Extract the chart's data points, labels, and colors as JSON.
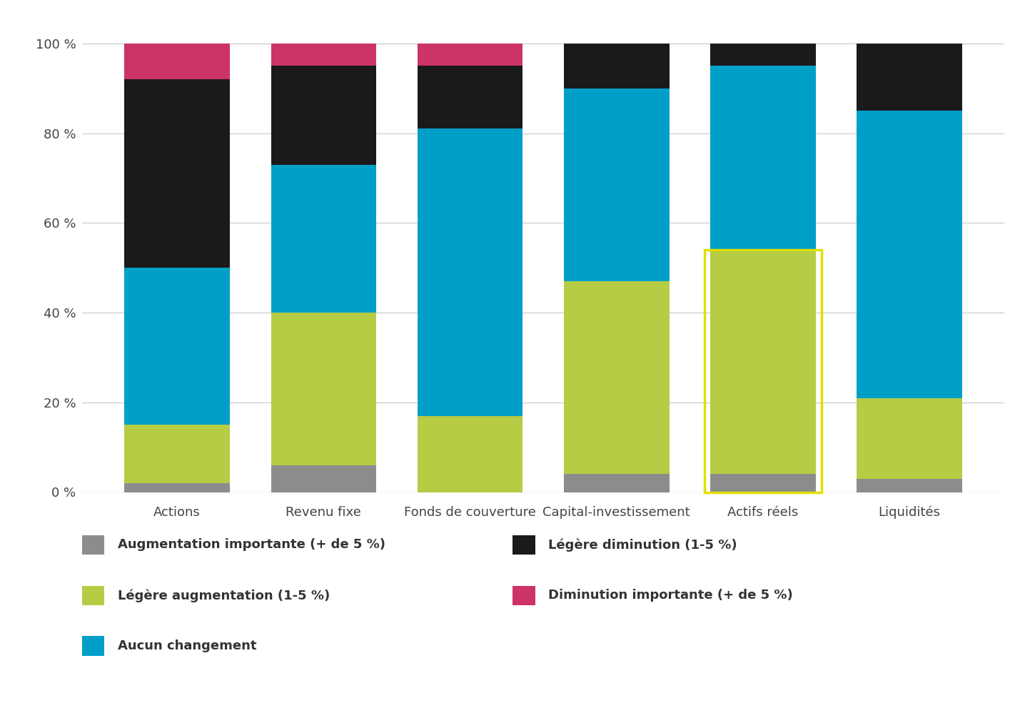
{
  "categories": [
    "Actions",
    "Revenu fixe",
    "Fonds de couverture",
    "Capital-investissement",
    "Actifs réels",
    "Liquidités"
  ],
  "segment_order": [
    "aug_imp",
    "leg_aug",
    "aucun",
    "leg_dim",
    "dim_imp"
  ],
  "segments": {
    "aug_imp": [
      2,
      6,
      0,
      4,
      4,
      3
    ],
    "leg_aug": [
      13,
      34,
      17,
      43,
      50,
      18
    ],
    "aucun": [
      35,
      33,
      64,
      43,
      41,
      64
    ],
    "leg_dim": [
      42,
      22,
      14,
      10,
      5,
      15
    ],
    "dim_imp": [
      8,
      5,
      5,
      0,
      0,
      0
    ]
  },
  "colors": {
    "aug_imp": "#8c8c8c",
    "leg_aug": "#b5cc44",
    "aucun": "#009fc8",
    "leg_dim": "#1a1a1a",
    "dim_imp": "#cc3366"
  },
  "legend_left": [
    {
      "key": "aug_imp",
      "label": "Augmentation importante (+ de 5 %)"
    },
    {
      "key": "leg_aug",
      "label": "Légère augmentation (1-5 %)"
    },
    {
      "key": "aucun",
      "label": "Aucun changement"
    }
  ],
  "legend_right": [
    {
      "key": "leg_dim",
      "label": "Légère diminution (1-5 %)"
    },
    {
      "key": "dim_imp",
      "label": "Diminution importante (+ de 5 %)"
    }
  ],
  "highlight_bar_index": 4,
  "highlight_color": "#e0e000",
  "background_color": "#ffffff",
  "yticks": [
    0,
    20,
    40,
    60,
    80,
    100
  ],
  "ytick_labels": [
    "0 %",
    "20 %",
    "40 %",
    "60 %",
    "80 %",
    "100 %"
  ],
  "bar_width": 0.72,
  "figsize": [
    14.36,
    9.85
  ],
  "dpi": 100
}
